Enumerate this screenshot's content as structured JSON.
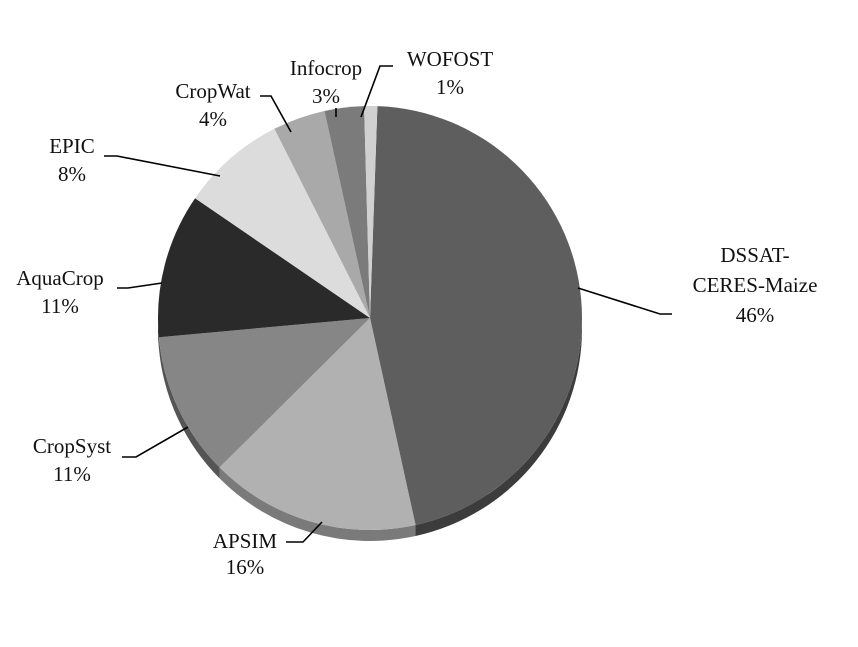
{
  "chart_data": {
    "type": "pie",
    "title": "",
    "start_angle_deg": -88,
    "direction": "clockwise",
    "slices": [
      {
        "label": [
          "DSSAT-",
          "CERES-Maize"
        ],
        "value": 46,
        "pct_text": "46%",
        "color": "#5e5e5e",
        "side_color": "#3c3c3c"
      },
      {
        "label": [
          "APSIM"
        ],
        "value": 16,
        "pct_text": "16%",
        "color": "#b1b1b1",
        "side_color": "#7a7a7a"
      },
      {
        "label": [
          "CropSyst"
        ],
        "value": 11,
        "pct_text": "11%",
        "color": "#868686",
        "side_color": "#555555"
      },
      {
        "label": [
          "AquaCrop"
        ],
        "value": 11,
        "pct_text": "11%",
        "color": "#2a2a2a",
        "side_color": "#151515"
      },
      {
        "label": [
          "EPIC"
        ],
        "value": 8,
        "pct_text": "8%",
        "color": "#dcdcdc",
        "side_color": "#a0a0a0"
      },
      {
        "label": [
          "CropWat"
        ],
        "value": 4,
        "pct_text": "4%",
        "color": "#a9a9a9",
        "side_color": "#707070"
      },
      {
        "label": [
          "Infocrop"
        ],
        "value": 3,
        "pct_text": "3%",
        "color": "#7b7b7b",
        "side_color": "#4e4e4e"
      },
      {
        "label": [
          "WOFOST"
        ],
        "value": 1,
        "pct_text": "1%",
        "color": "#d0d0d0",
        "side_color": "#999999"
      }
    ]
  }
}
